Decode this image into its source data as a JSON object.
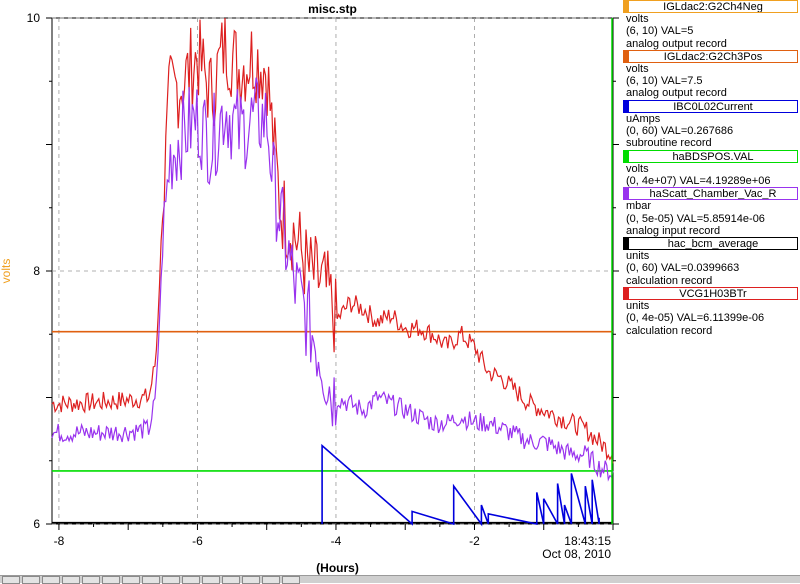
{
  "title": "misc.stp",
  "ylabel": "volts",
  "xlabel": "(Hours)",
  "y_ticks": [
    "6",
    "8",
    "10"
  ],
  "x_ticks": [
    "-8",
    "-6",
    "-4",
    "-2"
  ],
  "end_time": "18:43:15",
  "end_date": "Oct 08, 2010",
  "colors": {
    "ylabel": "#f0a020",
    "orange": "#e06010",
    "blue": "#0000dd",
    "green": "#00dd00",
    "purple": "#9933ee",
    "black": "#000000",
    "red": "#dd2020",
    "grid": "#999999"
  },
  "legend": [
    {
      "name": "IGLdac2:G2Ch4Neg",
      "color": "#f0a020",
      "units": "volts",
      "range": "(6, 10)  VAL=5",
      "type": "analog output record"
    },
    {
      "name": "IGLdac2:G2Ch3Pos",
      "color": "#e06010",
      "units": "volts",
      "range": "(6, 10) VAL=7.5",
      "type": "analog output record"
    },
    {
      "name": "IBC0L02Current",
      "color": "#0000dd",
      "units": "uAmps",
      "range": "(0, 60) VAL=0.267686",
      "type": "subroutine record"
    },
    {
      "name": "haBDSPOS.VAL",
      "color": "#00dd00",
      "units": "volts",
      "range": "(0, 4e+07) VAL=4.19289e+06",
      "type": ""
    },
    {
      "name": "haScatt_Chamber_Vac_R",
      "color": "#9933ee",
      "units": "mbar",
      "range": "(0, 5e-05) VAL=5.85914e-06",
      "type": "analog input record"
    },
    {
      "name": "hac_bcm_average",
      "color": "#000000",
      "units": "units",
      "range": "(0, 60) VAL=0.0399663",
      "type": "calculation record"
    },
    {
      "name": "VCG1H03BTr",
      "color": "#dd2020",
      "units": "units",
      "range": "(0, 4e-05) VAL=6.11399e-06",
      "type": "calculation record"
    }
  ],
  "chart_data": {
    "type": "line",
    "title": "misc.stp",
    "xlabel": "(Hours)",
    "ylabel": "volts",
    "xlim": [
      -8.1,
      0
    ],
    "ylim": [
      6,
      10
    ],
    "grid": true,
    "legend_position": "right",
    "series": [
      {
        "name": "IGLdac2:G2Ch3Pos",
        "color": "#e06010",
        "x": [
          -8.1,
          0
        ],
        "y": [
          7.52,
          7.52
        ]
      },
      {
        "name": "haBDSPOS.VAL",
        "color": "#00dd00",
        "x": [
          -8.1,
          0
        ],
        "y": [
          6.42,
          6.42
        ]
      },
      {
        "name": "hac_bcm_average",
        "color": "#000000",
        "x": [
          -8.1,
          0
        ],
        "y": [
          6.01,
          6.01
        ]
      },
      {
        "name": "VCG1H03BTr",
        "color": "#dd2020",
        "x": [
          -8.1,
          -7.5,
          -7.0,
          -6.7,
          -6.6,
          -6.5,
          -6.4,
          -6.2,
          -6.0,
          -5.8,
          -5.6,
          -5.4,
          -5.2,
          -5.0,
          -4.9,
          -4.8,
          -4.6,
          -4.4,
          -4.2,
          -4.1,
          -4.0,
          -3.8,
          -3.6,
          -3.4,
          -3.2,
          -3.0,
          -2.8,
          -2.6,
          -2.4,
          -2.2,
          -2.0,
          -1.8,
          -1.6,
          -1.4,
          -1.2,
          -1.0,
          -0.8,
          -0.6,
          -0.4,
          -0.2,
          0
        ],
        "y": [
          6.95,
          6.96,
          6.98,
          7.0,
          7.3,
          8.5,
          9.4,
          9.5,
          9.7,
          9.4,
          9.8,
          9.6,
          9.7,
          9.6,
          9.0,
          8.5,
          8.3,
          8.0,
          7.9,
          7.8,
          7.6,
          7.75,
          7.7,
          7.6,
          7.65,
          7.55,
          7.55,
          7.5,
          7.4,
          7.5,
          7.4,
          7.2,
          7.15,
          7.05,
          6.95,
          6.9,
          6.85,
          6.8,
          6.75,
          6.65,
          6.55
        ]
      },
      {
        "name": "haScatt_Chamber_Vac_R",
        "color": "#9933ee",
        "x": [
          -8.1,
          -7.5,
          -7.0,
          -6.7,
          -6.6,
          -6.5,
          -6.4,
          -6.2,
          -6.0,
          -5.8,
          -5.6,
          -5.4,
          -5.2,
          -5.0,
          -4.9,
          -4.8,
          -4.6,
          -4.4,
          -4.2,
          -4.1,
          -4.0,
          -3.8,
          -3.6,
          -3.4,
          -3.2,
          -3.0,
          -2.8,
          -2.6,
          -2.4,
          -2.2,
          -2.0,
          -1.8,
          -1.6,
          -1.4,
          -1.2,
          -1.0,
          -0.8,
          -0.6,
          -0.4,
          -0.2,
          0
        ],
        "y": [
          6.72,
          6.72,
          6.73,
          6.75,
          7.0,
          8.2,
          8.9,
          9.1,
          9.2,
          9.0,
          9.3,
          9.1,
          9.2,
          9.2,
          8.7,
          8.4,
          7.9,
          7.6,
          7.3,
          7.1,
          7.0,
          6.95,
          6.9,
          7.0,
          6.95,
          6.9,
          6.85,
          6.8,
          6.8,
          6.85,
          6.8,
          6.8,
          6.75,
          6.7,
          6.65,
          6.65,
          6.6,
          6.55,
          6.55,
          6.45,
          6.4
        ]
      },
      {
        "name": "IBC0L02Current",
        "color": "#0000dd",
        "x": [
          -4.2,
          -4.2,
          -2.9,
          -2.9,
          -2.3,
          -2.3,
          -1.9,
          -1.9,
          -1.8,
          -1.8,
          -1.1,
          -1.1,
          -1.0,
          -1.0,
          -0.8,
          -0.8,
          -0.7,
          -0.7,
          -0.6,
          -0.6,
          -0.4,
          -0.4,
          -0.3,
          -0.3,
          -0.2,
          -0.2
        ],
        "y": [
          6.0,
          6.62,
          6.0,
          6.1,
          6.0,
          6.3,
          6.0,
          6.15,
          6.0,
          6.08,
          6.0,
          6.25,
          6.0,
          6.2,
          6.0,
          6.32,
          6.0,
          6.15,
          6.0,
          6.4,
          6.0,
          6.3,
          6.0,
          6.35,
          6.0,
          6.05
        ]
      }
    ]
  }
}
